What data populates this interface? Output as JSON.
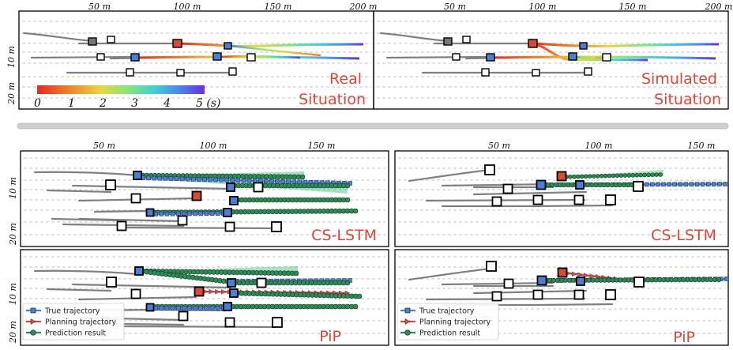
{
  "top_panels": [
    {
      "title_line1": "Real",
      "title_line2": "Situation"
    },
    {
      "title_line1": "Simulated",
      "title_line2": "Situation"
    }
  ],
  "top_x_ticks": [
    "50 m",
    "100 m",
    "150 m",
    "200 m"
  ],
  "y_ticks": [
    "10 m",
    "20 m"
  ],
  "bottom_x_ticks": [
    "50 m",
    "100 m",
    "150 m"
  ],
  "colorbar": {
    "ticks": [
      "0",
      "1",
      "2",
      "3",
      "4",
      "5 (s)"
    ],
    "colors": [
      "#e8281e",
      "#f07e2a",
      "#e8d63a",
      "#7fe87a",
      "#3fd0d8",
      "#4a84f0",
      "#6a2ee0"
    ]
  },
  "bottom_panels": [
    {
      "label": "CS-LSTM"
    },
    {
      "label": "CS-LSTM"
    },
    {
      "label": "PiP"
    },
    {
      "label": "PiP"
    }
  ],
  "legend": {
    "items": [
      {
        "label": "True trajectory",
        "color": "#4a7fd6"
      },
      {
        "label": "Planning trajectory",
        "color": "#d64a4a"
      },
      {
        "label": "Prediction result",
        "color": "#2e8b57"
      }
    ]
  },
  "colors": {
    "ego": "#d84a3a",
    "target": "#4a7fd6",
    "prediction": "#2e8b57",
    "label": "#d9473a"
  }
}
